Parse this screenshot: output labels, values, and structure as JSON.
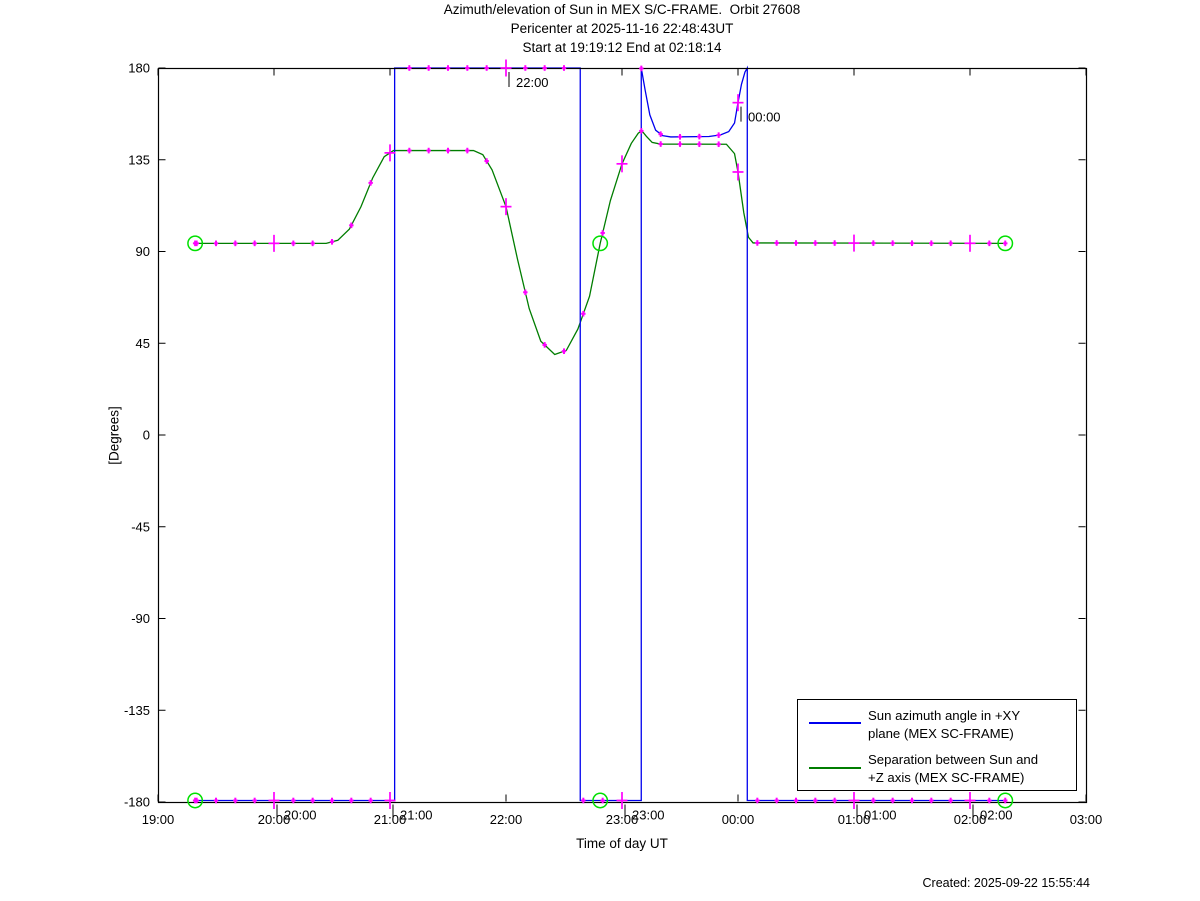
{
  "chart_data": {
    "type": "line",
    "title_lines": [
      "Azimuth/elevation of Sun in MEX S/C-FRAME.  Orbit 27608",
      "Pericenter at 2025-11-16 22:48:43UT",
      "Start at 19:19:12 End at 02:18:14"
    ],
    "xlabel": "Time of day UT",
    "ylabel": "[Degrees]",
    "x_tick_labels": [
      "19:00",
      "20:00",
      "21:00",
      "22:00",
      "23:00",
      "00:00",
      "01:00",
      "02:00",
      "03:00"
    ],
    "y_tick_labels": [
      180,
      135,
      90,
      45,
      0,
      -45,
      -90,
      -135,
      -180
    ],
    "x_axis_start": "19:00",
    "x_axis_hours_span": 8,
    "ylim": [
      -180,
      180
    ],
    "grid": false,
    "marker_interval_minutes": 10,
    "start_time": "19:19:12",
    "pericenter_time": "22:48:43",
    "end_time": "02:18:14",
    "colors": {
      "azimuth_line": "#0000ee",
      "separation_line": "#007d00",
      "marker": "#ff00ff",
      "event_circle": "#00e000",
      "axis": "#000000",
      "background": "#ffffff"
    },
    "series": [
      {
        "name": "Sun azimuth angle in +XY plane (MEX SC-FRAME)",
        "color": "#0000ee",
        "points_t_hours_after_19": [
          [
            0.32,
            -180
          ],
          [
            2.04,
            -180
          ],
          [
            2.04,
            180
          ],
          [
            3.64,
            180
          ],
          [
            3.64,
            -180
          ],
          [
            4.166,
            -180
          ],
          [
            4.166,
            180
          ],
          [
            4.2,
            169
          ],
          [
            4.24,
            157
          ],
          [
            4.29,
            149.5
          ],
          [
            4.35,
            146.8
          ],
          [
            4.42,
            146.2
          ],
          [
            4.75,
            146.4
          ],
          [
            4.85,
            147.2
          ],
          [
            4.92,
            148.8
          ],
          [
            4.97,
            153
          ],
          [
            5.0,
            163
          ],
          [
            5.03,
            172
          ],
          [
            5.06,
            178
          ],
          [
            5.08,
            180
          ],
          [
            5.08,
            -180
          ],
          [
            7.304,
            -180
          ]
        ]
      },
      {
        "name": "Separation between Sun and +Z axis (MEX SC-FRAME)",
        "color": "#007d00",
        "points_t_hours_after_19": [
          [
            0.32,
            94
          ],
          [
            1.45,
            94
          ],
          [
            1.55,
            95.5
          ],
          [
            1.65,
            101
          ],
          [
            1.75,
            112
          ],
          [
            1.85,
            126
          ],
          [
            1.95,
            136.5
          ],
          [
            2.03,
            139.5
          ],
          [
            2.72,
            139.5
          ],
          [
            2.8,
            137.5
          ],
          [
            2.88,
            130
          ],
          [
            3.0,
            112
          ],
          [
            3.1,
            86
          ],
          [
            3.2,
            62
          ],
          [
            3.3,
            46
          ],
          [
            3.42,
            39.5
          ],
          [
            3.52,
            41.5
          ],
          [
            3.62,
            52
          ],
          [
            3.72,
            68
          ],
          [
            3.812,
            94
          ],
          [
            3.9,
            115
          ],
          [
            4.0,
            133
          ],
          [
            4.08,
            143
          ],
          [
            4.14,
            148
          ],
          [
            4.17,
            149.3
          ],
          [
            4.21,
            146.5
          ],
          [
            4.26,
            143.5
          ],
          [
            4.33,
            142.7
          ],
          [
            4.9,
            142.6
          ],
          [
            4.97,
            138
          ],
          [
            5.0,
            129
          ],
          [
            5.05,
            109
          ],
          [
            5.09,
            97
          ],
          [
            5.13,
            94.2
          ],
          [
            7.304,
            94
          ]
        ]
      }
    ],
    "event_circles_t": [
      0.32,
      3.812,
      7.304
    ],
    "hour_annotations": [
      {
        "t": 1,
        "label": "20:00"
      },
      {
        "t": 2,
        "label": "21:00"
      },
      {
        "t": 3,
        "label": "22:00"
      },
      {
        "t": 4,
        "label": "23:00"
      },
      {
        "t": 5,
        "label": "00:00"
      },
      {
        "t": 6,
        "label": "01:00"
      },
      {
        "t": 7,
        "label": "02:00"
      }
    ],
    "legend": {
      "position": "lower right",
      "items": [
        {
          "label_lines": [
            "Sun azimuth angle in +XY",
            "plane (MEX SC-FRAME)"
          ],
          "color": "#0000ee"
        },
        {
          "label_lines": [
            "Separation between Sun and",
            "+Z axis (MEX SC-FRAME)"
          ],
          "color": "#007d00"
        }
      ]
    }
  },
  "footer": {
    "created": "Created: 2025-09-22 15:55:44"
  }
}
